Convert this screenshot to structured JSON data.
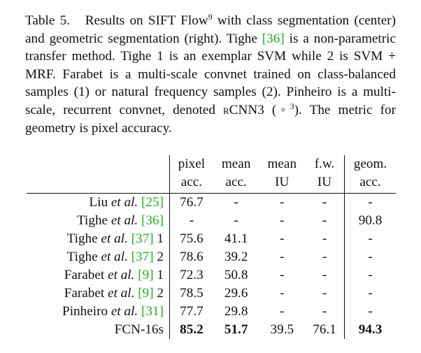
{
  "caption": {
    "label": "Table 5.",
    "t1": "Results on SIFT Flow",
    "t1_sup": "9",
    "t2": " with class segmentation (center) and geometric segmentation (right).  Tighe ",
    "t2_cite": "[36]",
    "t3": " is a non-parametric transfer method.  Tighe 1 is an exemplar SVM while 2 is SVM + MRF. Farabet is a multi-scale convnet trained on class-balanced samples (1) or natural frequency samples (2).  Pinheiro is a multi-scale, recurrent convnet, denoted ",
    "t3_sc": "rCNN",
    "t3_sub": "3",
    "t4": " (◦",
    "t4_sup": "3",
    "t5": "). The metric for geometry is pixel accuracy."
  },
  "table": {
    "header_top": [
      "pixel",
      "mean",
      "mean",
      "f.w.",
      "geom."
    ],
    "header_bottom": [
      "acc.",
      "acc.",
      "IU",
      "IU",
      "acc."
    ],
    "rows": [
      {
        "a": "Liu ",
        "b": "et al.",
        "c": " ",
        "cite": "[25]",
        "d": "",
        "v": [
          "76.7",
          "-",
          "-",
          "-",
          "-"
        ]
      },
      {
        "a": "Tighe ",
        "b": "et al.",
        "c": " ",
        "cite": "[36]",
        "d": "",
        "v": [
          "-",
          "-",
          "-",
          "-",
          "90.8"
        ]
      },
      {
        "a": "Tighe ",
        "b": "et al.",
        "c": " ",
        "cite": "[37]",
        "d": " 1",
        "v": [
          "75.6",
          "41.1",
          "-",
          "-",
          "-"
        ]
      },
      {
        "a": "Tighe ",
        "b": "et al.",
        "c": " ",
        "cite": "[37]",
        "d": " 2",
        "v": [
          "78.6",
          "39.2",
          "-",
          "-",
          "-"
        ]
      },
      {
        "a": "Farabet ",
        "b": "et al.",
        "c": " ",
        "cite": "[9]",
        "d": " 1",
        "v": [
          "72.3",
          "50.8",
          "-",
          "-",
          "-"
        ]
      },
      {
        "a": "Farabet ",
        "b": "et al.",
        "c": " ",
        "cite": "[9]",
        "d": " 2",
        "v": [
          "78.5",
          "29.6",
          "-",
          "-",
          "-"
        ]
      },
      {
        "a": "Pinheiro ",
        "b": "et al.",
        "c": " ",
        "cite": "[31]",
        "d": "",
        "v": [
          "77.7",
          "29.8",
          "-",
          "-",
          "-"
        ]
      },
      {
        "a": "FCN-16s",
        "b": "",
        "c": "",
        "cite": "",
        "d": "",
        "v": [
          "85.2",
          "51.7",
          "39.5",
          "76.1",
          "94.3"
        ],
        "bold": [
          true,
          true,
          false,
          false,
          true
        ]
      }
    ]
  },
  "colors": {
    "citation": "#21b021",
    "text": "#111111"
  }
}
